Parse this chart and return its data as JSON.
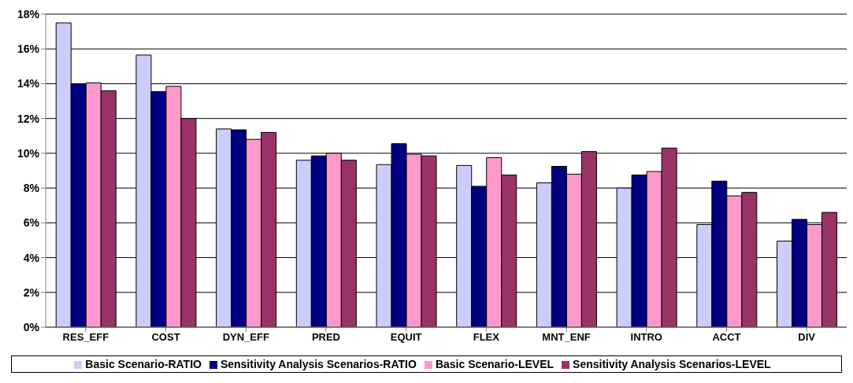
{
  "chart_data": {
    "type": "bar",
    "categories": [
      "RES_EFF",
      "COST",
      "DYN_EFF",
      "PRED",
      "EQUIT",
      "FLEX",
      "MNT_ENF",
      "INTRO",
      "ACCT",
      "DIV"
    ],
    "series": [
      {
        "name": "Basic Scenario-RATIO",
        "color": "#ccccff",
        "values": [
          17.5,
          15.65,
          11.4,
          9.6,
          9.35,
          9.3,
          8.3,
          8.0,
          5.9,
          4.95
        ]
      },
      {
        "name": "Sensitivity Analysis Scenarios-RATIO",
        "color": "#000080",
        "values": [
          14.0,
          13.55,
          11.35,
          9.85,
          10.55,
          8.1,
          9.25,
          8.75,
          8.4,
          6.2
        ]
      },
      {
        "name": "Basic Scenario-LEVEL",
        "color": "#ff99cc",
        "values": [
          14.05,
          13.85,
          10.8,
          10.0,
          9.95,
          9.75,
          8.8,
          8.95,
          7.55,
          5.9
        ]
      },
      {
        "name": "Sensitivity Analysis Scenarios-LEVEL",
        "color": "#993366",
        "values": [
          13.6,
          12.0,
          11.2,
          9.6,
          9.85,
          8.75,
          10.1,
          10.3,
          7.75,
          6.6
        ]
      }
    ],
    "ylim": [
      0,
      18
    ],
    "yticks": [
      {
        "value": 0,
        "label": "0%"
      },
      {
        "value": 2,
        "label": "2%"
      },
      {
        "value": 4,
        "label": "4%"
      },
      {
        "value": 6,
        "label": "6%"
      },
      {
        "value": 8,
        "label": "8%"
      },
      {
        "value": 10,
        "label": "10%"
      },
      {
        "value": 12,
        "label": "12%"
      },
      {
        "value": 14,
        "label": "14%"
      },
      {
        "value": 16,
        "label": "16%"
      },
      {
        "value": 18,
        "label": "18%"
      }
    ],
    "grid": "y",
    "legend": "bottom"
  }
}
